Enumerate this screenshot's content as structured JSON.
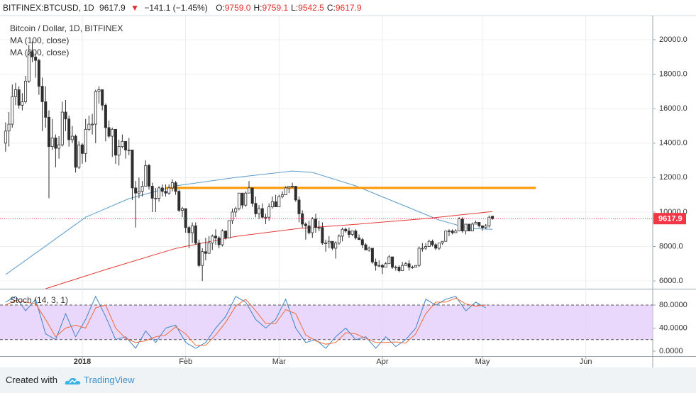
{
  "header": {
    "symbol": "BITFINEX:BTCUSD, 1D",
    "price": "9617.9",
    "arrow": "▼",
    "change": "−141.1 (−1.45%)",
    "ohlc": [
      {
        "label": "O:",
        "value": "9759.0"
      },
      {
        "label": "H:",
        "value": "9759.1"
      },
      {
        "label": "L:",
        "value": "9542.5"
      },
      {
        "label": "C:",
        "value": "9617.9"
      }
    ]
  },
  "chart_data": [
    {
      "type": "candlestick",
      "title": "Bitcoin / Dollar, 1D, BITFINEX",
      "up_color": "#ffffff",
      "down_color": "#2e2e2e",
      "wick_color": "#2e2e2e",
      "last_price_color": "#f23645",
      "xlim": [
        -0.4,
        194.07
      ],
      "ylim": [
        5550,
        21400
      ],
      "yticks": [
        {
          "value": 6000,
          "label": "6000.0"
        },
        {
          "value": 8000,
          "label": "8000.0"
        },
        {
          "value": 10000,
          "label": "10000.0"
        },
        {
          "value": 12000,
          "label": "12000.0"
        },
        {
          "value": 14000,
          "label": "14000.0"
        },
        {
          "value": 16000,
          "label": "16000.0"
        },
        {
          "value": 18000,
          "label": "18000.0"
        },
        {
          "value": 20000,
          "label": "20000.0"
        }
      ],
      "grid": true,
      "candles": [
        [
          14000,
          15200,
          13500,
          14700
        ],
        [
          14700,
          15800,
          13800,
          15100
        ],
        [
          15100,
          17400,
          14900,
          16700
        ],
        [
          16700,
          17500,
          16200,
          17100
        ],
        [
          17100,
          17300,
          16000,
          16200
        ],
        [
          16200,
          16900,
          15900,
          16400
        ],
        [
          16400,
          17900,
          16300,
          17600
        ],
        [
          17600,
          19700,
          17500,
          19300
        ],
        [
          19300,
          19900,
          18700,
          19000
        ],
        [
          19000,
          19200,
          17800,
          18800
        ],
        [
          18800,
          18900,
          16800,
          17300
        ],
        [
          17300,
          17800,
          14700,
          16400
        ],
        [
          16400,
          17300,
          14900,
          15500
        ],
        [
          15500,
          15900,
          10800,
          13800
        ],
        [
          13800,
          15400,
          13600,
          14300
        ],
        [
          14300,
          14500,
          12600,
          13700
        ],
        [
          13700,
          14400,
          13100,
          13900
        ],
        [
          13900,
          16400,
          13800,
          15800
        ],
        [
          15800,
          16500,
          14700,
          15400
        ],
        [
          15400,
          15600,
          13800,
          14200
        ],
        [
          14200,
          15000,
          14000,
          14400
        ],
        [
          14400,
          14500,
          12300,
          12600
        ],
        [
          12600,
          14100,
          12500,
          13900
        ],
        [
          13900,
          14000,
          12800,
          13400
        ],
        [
          13400,
          15400,
          12900,
          14800
        ],
        [
          14800,
          15600,
          14700,
          15100
        ],
        [
          15100,
          15700,
          14500,
          15100
        ],
        [
          15100,
          17100,
          14000,
          17000
        ],
        [
          17000,
          17300,
          16300,
          17100
        ],
        [
          17100,
          17100,
          15900,
          16200
        ],
        [
          16200,
          16300,
          14100,
          14900
        ],
        [
          14900,
          15300,
          14300,
          14400
        ],
        [
          14400,
          14900,
          13200,
          14800
        ],
        [
          14800,
          14800,
          12800,
          13300
        ],
        [
          13300,
          14200,
          12700,
          13800
        ],
        [
          13800,
          14500,
          13700,
          14100
        ],
        [
          14100,
          14100,
          13100,
          13600
        ],
        [
          13600,
          14300,
          13300,
          13600
        ],
        [
          13600,
          13600,
          10700,
          11400
        ],
        [
          11400,
          11800,
          9100,
          11100
        ],
        [
          11100,
          12000,
          10800,
          11200
        ],
        [
          11200,
          11800,
          10900,
          11500
        ],
        [
          11500,
          13000,
          11500,
          12700
        ],
        [
          12700,
          12800,
          11300,
          11500
        ],
        [
          11500,
          11700,
          10000,
          10800
        ],
        [
          10800,
          11400,
          10000,
          10800
        ],
        [
          10800,
          11500,
          10600,
          11400
        ],
        [
          11400,
          11600,
          10900,
          11200
        ],
        [
          11200,
          11600,
          10900,
          11100
        ],
        [
          11100,
          11600,
          11000,
          11400
        ],
        [
          11400,
          11900,
          11200,
          11700
        ],
        [
          11700,
          11800,
          11000,
          11200
        ],
        [
          11200,
          11300,
          10000,
          10100
        ],
        [
          10100,
          10300,
          9700,
          10200
        ],
        [
          10200,
          10200,
          8800,
          9100
        ],
        [
          9100,
          9200,
          7900,
          8800
        ],
        [
          8800,
          9400,
          8200,
          9200
        ],
        [
          9200,
          9400,
          8100,
          8200
        ],
        [
          8200,
          8400,
          6800,
          6900
        ],
        [
          6900,
          7900,
          6000,
          7700
        ],
        [
          7700,
          8500,
          7200,
          7600
        ],
        [
          7600,
          8600,
          7600,
          8200
        ],
        [
          8200,
          8700,
          7800,
          8600
        ],
        [
          8600,
          9000,
          8100,
          8500
        ],
        [
          8500,
          8600,
          7900,
          8100
        ],
        [
          8100,
          9000,
          8000,
          8900
        ],
        [
          8900,
          8900,
          8400,
          8500
        ],
        [
          8500,
          9500,
          8500,
          9500
        ],
        [
          9500,
          10200,
          9300,
          10000
        ],
        [
          10000,
          10300,
          9700,
          10200
        ],
        [
          10200,
          11100,
          10100,
          11100
        ],
        [
          11100,
          11100,
          10200,
          10400
        ],
        [
          10400,
          11200,
          10300,
          11100
        ],
        [
          11100,
          11800,
          11100,
          11400
        ],
        [
          11400,
          11400,
          10300,
          10500
        ],
        [
          10500,
          10900,
          9700,
          9900
        ],
        [
          9900,
          10400,
          9600,
          10200
        ],
        [
          10200,
          10500,
          9600,
          9700
        ],
        [
          9700,
          9900,
          9300,
          9700
        ],
        [
          9700,
          10500,
          9500,
          10300
        ],
        [
          10300,
          10900,
          10200,
          10600
        ],
        [
          10600,
          11000,
          10300,
          10300
        ],
        [
          10300,
          11000,
          10300,
          10900
        ],
        [
          10900,
          11200,
          10800,
          11000
        ],
        [
          11000,
          11500,
          11000,
          11400
        ],
        [
          11400,
          11500,
          11100,
          11500
        ],
        [
          11500,
          11700,
          11400,
          11500
        ],
        [
          11500,
          11500,
          10600,
          10700
        ],
        [
          10700,
          10900,
          9400,
          9900
        ],
        [
          9900,
          10100,
          9100,
          9300
        ],
        [
          9300,
          9400,
          8400,
          9200
        ],
        [
          9200,
          9500,
          8700,
          8800
        ],
        [
          8800,
          9700,
          8500,
          9600
        ],
        [
          9600,
          9900,
          8800,
          9100
        ],
        [
          9100,
          9500,
          8900,
          9100
        ],
        [
          9100,
          9400,
          8100,
          8200
        ],
        [
          8200,
          8400,
          7700,
          8200
        ],
        [
          8200,
          8600,
          7900,
          8300
        ],
        [
          8300,
          8300,
          7800,
          7900
        ],
        [
          7900,
          8300,
          7300,
          8200
        ],
        [
          8200,
          8700,
          8100,
          8600
        ],
        [
          8600,
          9100,
          8300,
          9000
        ],
        [
          9000,
          9100,
          8800,
          8900
        ],
        [
          8900,
          9100,
          8500,
          8700
        ],
        [
          8700,
          8900,
          8600,
          8900
        ],
        [
          8900,
          9000,
          8400,
          8500
        ],
        [
          8500,
          8700,
          8400,
          8400
        ],
        [
          8400,
          8500,
          7900,
          8100
        ],
        [
          8100,
          8200,
          7800,
          7800
        ],
        [
          7800,
          8000,
          7700,
          7900
        ],
        [
          7900,
          7900,
          7000,
          7100
        ],
        [
          7100,
          7300,
          6600,
          6900
        ],
        [
          6900,
          7200,
          6800,
          6900
        ],
        [
          6900,
          7000,
          6400,
          6800
        ],
        [
          6800,
          7100,
          6800,
          7000
        ],
        [
          7000,
          7500,
          7000,
          7400
        ],
        [
          7400,
          7400,
          6700,
          6800
        ],
        [
          6800,
          6900,
          6600,
          6800
        ],
        [
          6800,
          6900,
          6500,
          6600
        ],
        [
          6600,
          7100,
          6600,
          6900
        ],
        [
          6900,
          7100,
          6900,
          7000
        ],
        [
          7000,
          7200,
          6600,
          6800
        ],
        [
          6800,
          6900,
          6700,
          6800
        ],
        [
          6800,
          6900,
          6800,
          6900
        ],
        [
          6900,
          8000,
          6800,
          7900
        ],
        [
          7900,
          8200,
          7700,
          7900
        ],
        [
          7900,
          8200,
          7800,
          8000
        ],
        [
          8000,
          8400,
          8000,
          8300
        ],
        [
          8300,
          8400,
          8000,
          8100
        ],
        [
          8100,
          8200,
          7800,
          7900
        ],
        [
          7900,
          8200,
          7800,
          8200
        ],
        [
          8200,
          8300,
          8100,
          8300
        ],
        [
          8300,
          8900,
          8300,
          8900
        ],
        [
          8900,
          9000,
          8600,
          8900
        ],
        [
          8900,
          9000,
          8700,
          8800
        ],
        [
          8800,
          9000,
          8800,
          8900
        ],
        [
          8900,
          9700,
          8900,
          9600
        ],
        [
          9600,
          9700,
          8800,
          8900
        ],
        [
          8900,
          9300,
          8700,
          9300
        ],
        [
          9300,
          9300,
          8900,
          8900
        ],
        [
          8900,
          9400,
          8900,
          9300
        ],
        [
          9300,
          9500,
          9300,
          9400
        ],
        [
          9400,
          9400,
          9100,
          9200
        ],
        [
          9200,
          9200,
          8900,
          9100
        ],
        [
          9100,
          9300,
          9000,
          9200
        ],
        [
          9200,
          9800,
          9100,
          9700
        ],
        [
          9759.0,
          9759.1,
          9542.5,
          9617.9
        ]
      ],
      "series": [
        {
          "name": "MA (100, close)",
          "color": "#5b9bc9",
          "x": [
            0,
            11,
            24,
            37,
            51,
            69,
            86,
            92,
            105,
            117,
            130,
            139,
            146
          ],
          "values": [
            6370,
            7890,
            9700,
            10780,
            11520,
            12010,
            12380,
            12300,
            11520,
            10570,
            9540,
            9050,
            9000
          ]
        },
        {
          "name": "MA (200, close)",
          "color": "#e53935",
          "x": [
            12,
            30,
            51,
            69,
            88,
            105,
            126,
            146
          ],
          "values": [
            5550,
            6660,
            7890,
            8590,
            9050,
            9290,
            9620,
            10030
          ]
        }
      ],
      "levels": [
        {
          "value": 11400,
          "x": [
            48,
            159
          ],
          "color": "#ff9800"
        }
      ]
    },
    {
      "type": "line",
      "title": "Stoch (14, 3, 1)",
      "xlim": [
        -0.4,
        194.07
      ],
      "ylim": [
        -8.6,
        105.8
      ],
      "yticks": [
        {
          "value": 0,
          "label": "0.0000"
        },
        {
          "value": 40,
          "label": "40.0000"
        },
        {
          "value": 80,
          "label": "80.0000"
        }
      ],
      "band": [
        20,
        80
      ],
      "band_color": "#e1c9fb",
      "xticks": [
        {
          "value": 23,
          "label": "2018"
        },
        {
          "value": 54,
          "label": "Feb"
        },
        {
          "value": 82,
          "label": "Mar"
        },
        {
          "value": 113,
          "label": "Apr"
        },
        {
          "value": 143,
          "label": "May"
        },
        {
          "value": 174,
          "label": "Jun"
        }
      ],
      "x": [
        0,
        3,
        6,
        9,
        12,
        15,
        18,
        21,
        24,
        27,
        30,
        33,
        36,
        39,
        42,
        45,
        48,
        51,
        54,
        57,
        60,
        63,
        66,
        69,
        72,
        75,
        78,
        81,
        84,
        87,
        90,
        93,
        96,
        99,
        102,
        105,
        108,
        111,
        114,
        117,
        120,
        123,
        126,
        129,
        132,
        135,
        138,
        141,
        144
      ],
      "series": [
        {
          "color": "#3d85c6",
          "values": [
            85,
            95,
            70,
            90,
            30,
            20,
            65,
            25,
            55,
            95,
            60,
            20,
            25,
            5,
            35,
            15,
            40,
            45,
            15,
            5,
            15,
            40,
            60,
            95,
            85,
            55,
            40,
            55,
            90,
            40,
            15,
            20,
            5,
            25,
            40,
            20,
            25,
            5,
            25,
            8,
            20,
            40,
            90,
            80,
            90,
            95,
            70,
            85,
            75
          ]
        },
        {
          "color": "#ef6c3a",
          "values": [
            80,
            88,
            85,
            82,
            55,
            25,
            40,
            45,
            40,
            75,
            80,
            40,
            22,
            15,
            18,
            25,
            28,
            42,
            30,
            10,
            10,
            28,
            50,
            78,
            90,
            70,
            48,
            48,
            72,
            65,
            28,
            18,
            12,
            15,
            32,
            30,
            22,
            15,
            15,
            16,
            14,
            30,
            65,
            85,
            85,
            92,
            82,
            78,
            80
          ]
        }
      ]
    }
  ],
  "footer": {
    "text": "Created with",
    "brand": "TradingView"
  }
}
